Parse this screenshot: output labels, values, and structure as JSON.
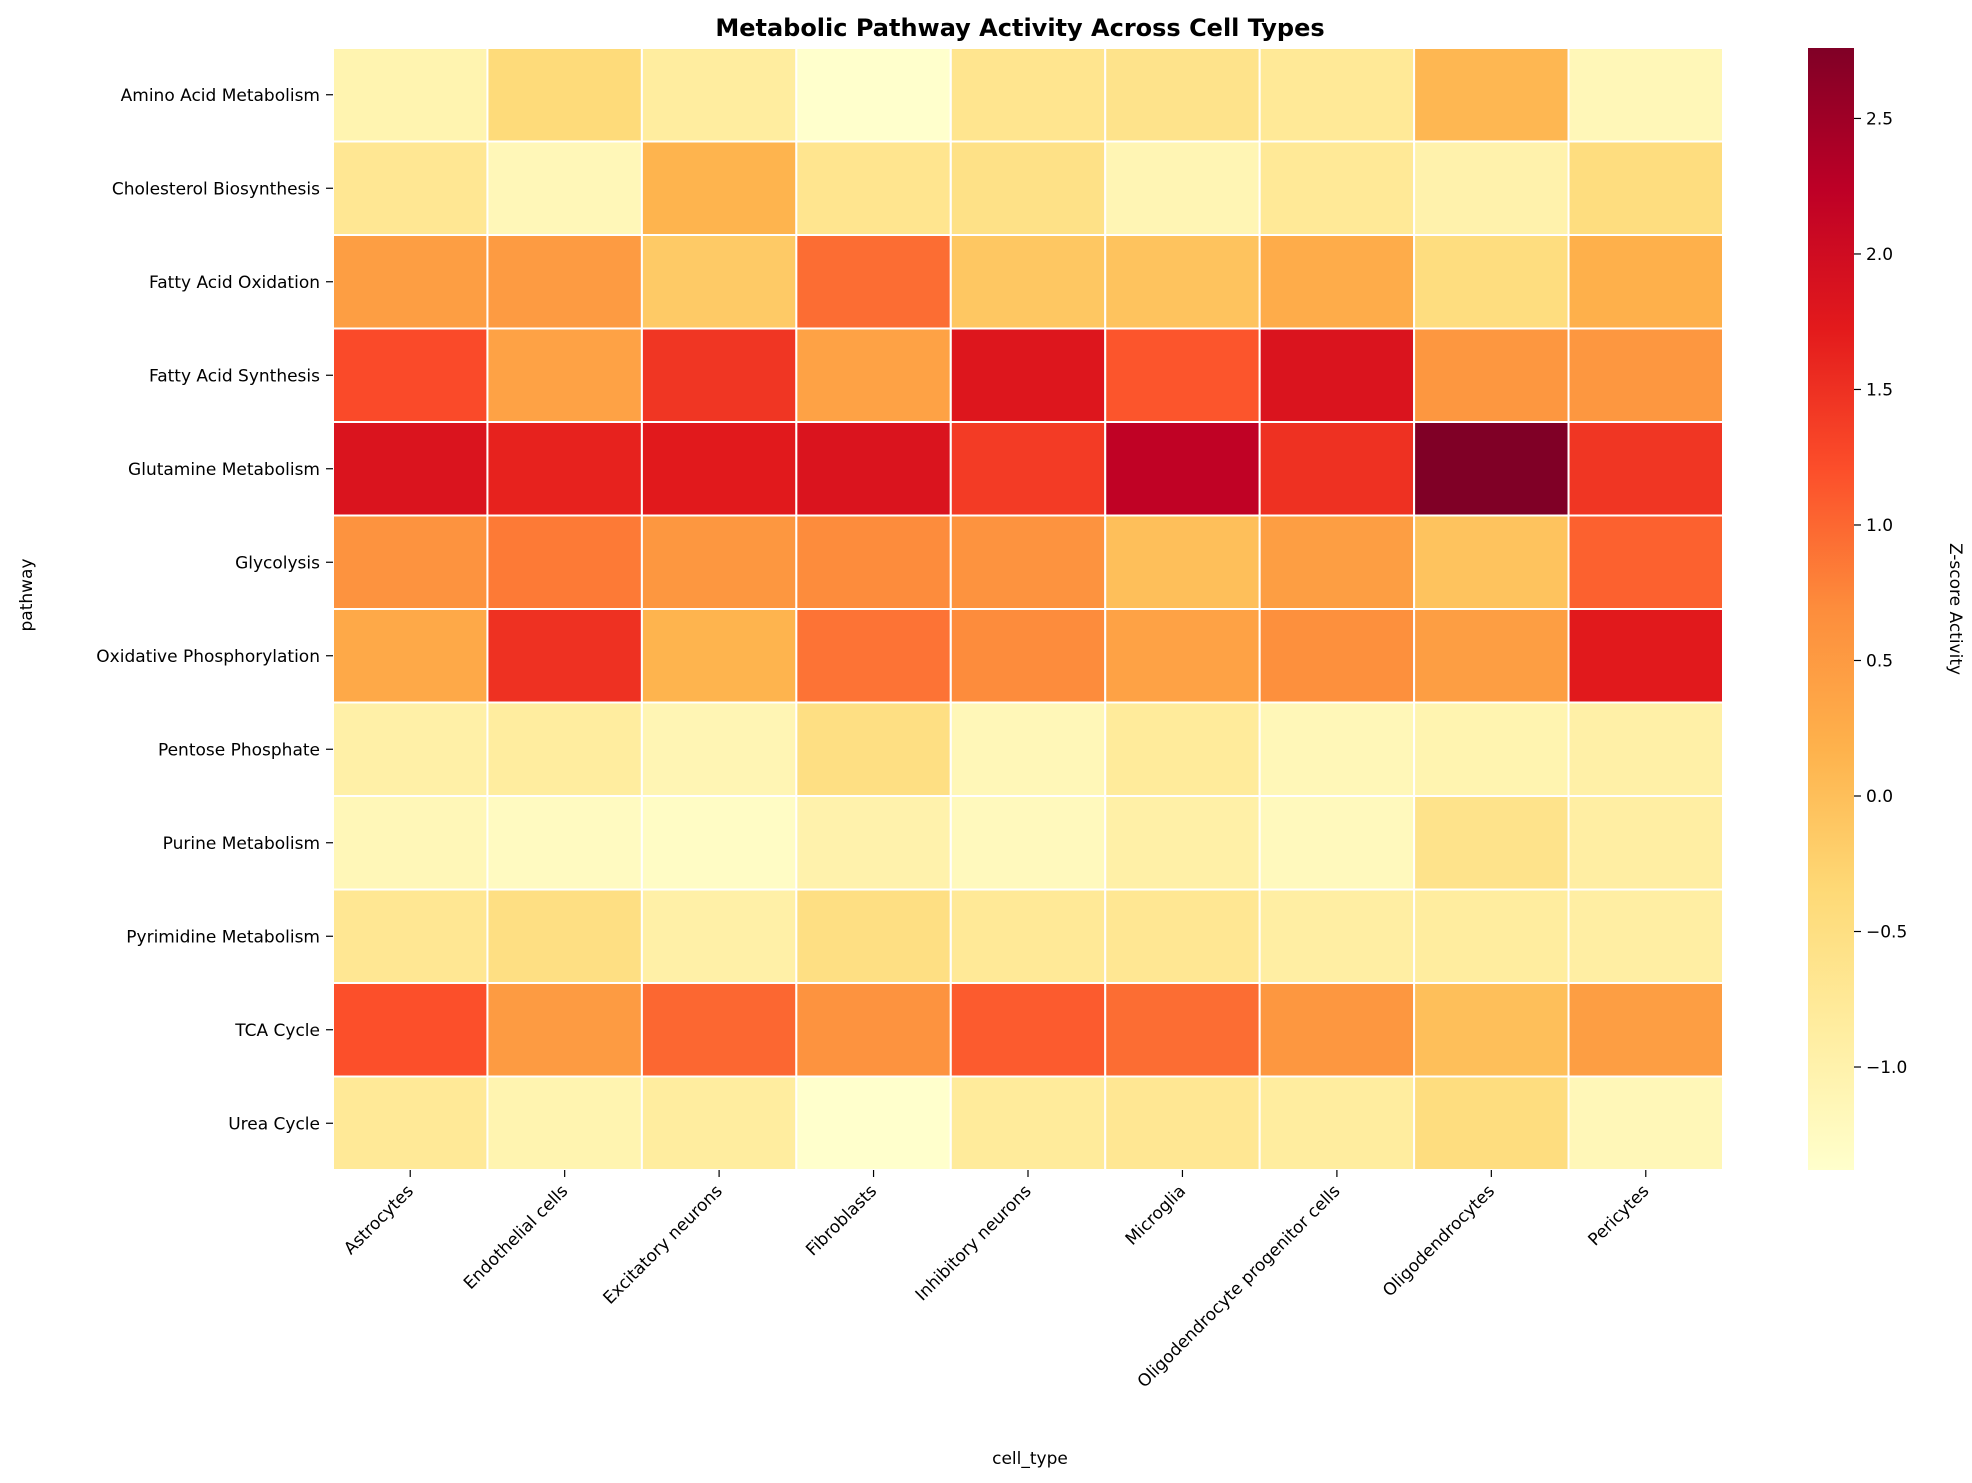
{
  "chart_data": {
    "type": "heatmap",
    "title": "Metabolic Pathway Activity Across Cell Types",
    "xlabel": "cell_type",
    "ylabel": "pathway",
    "colorbar_label": "Z-score Activity",
    "colormap": "YlOrRd",
    "vmin": -1.38,
    "vmax": 2.76,
    "colorbar_ticks": [
      2.5,
      2.0,
      1.5,
      1.0,
      0.5,
      0.0,
      -0.5,
      -1.0
    ],
    "colorbar_tick_labels": [
      "2.5",
      "2.0",
      "1.5",
      "1.0",
      "0.5",
      "0.0",
      "−0.5",
      "−1.0"
    ],
    "x_categories": [
      "Astrocytes",
      "Endothelial cells",
      "Excitatory neurons",
      "Fibroblasts",
      "Inhibitory neurons",
      "Microglia",
      "Oligodendrocyte progenitor cells",
      "Oligodendrocytes",
      "Pericytes"
    ],
    "y_categories": [
      "Amino Acid Metabolism",
      "Cholesterol Biosynthesis",
      "Fatty Acid Oxidation",
      "Fatty Acid Synthesis",
      "Glutamine Metabolism",
      "Glycolysis",
      "Oxidative Phosphorylation",
      "Pentose Phosphate",
      "Purine Metabolism",
      "Pyrimidine Metabolism",
      "TCA Cycle",
      "Urea Cycle"
    ],
    "values": [
      [
        -1.05,
        -0.4,
        -0.85,
        -1.38,
        -0.65,
        -0.6,
        -0.75,
        0.1,
        -1.15
      ],
      [
        -0.7,
        -1.15,
        0.15,
        -0.65,
        -0.55,
        -1.1,
        -0.75,
        -1.0,
        -0.45
      ],
      [
        0.45,
        0.5,
        -0.15,
        0.95,
        -0.1,
        -0.05,
        0.25,
        -0.45,
        0.2
      ],
      [
        1.25,
        0.4,
        1.45,
        0.4,
        1.8,
        1.15,
        1.85,
        0.55,
        0.55
      ],
      [
        1.85,
        1.65,
        1.75,
        1.85,
        1.4,
        2.2,
        1.5,
        2.76,
        1.45
      ],
      [
        0.6,
        0.85,
        0.55,
        0.7,
        0.6,
        0.0,
        0.45,
        -0.05,
        1.05
      ],
      [
        0.3,
        1.5,
        0.15,
        0.9,
        0.7,
        0.4,
        0.65,
        0.45,
        1.75
      ],
      [
        -0.95,
        -0.85,
        -1.1,
        -0.5,
        -1.15,
        -0.8,
        -1.15,
        -1.05,
        -0.95
      ],
      [
        -1.15,
        -1.25,
        -1.3,
        -1.0,
        -1.2,
        -0.95,
        -1.2,
        -0.6,
        -0.9
      ],
      [
        -0.7,
        -0.5,
        -0.95,
        -0.5,
        -0.75,
        -0.7,
        -0.9,
        -0.85,
        -0.9
      ],
      [
        1.2,
        0.5,
        1.0,
        0.6,
        1.1,
        0.95,
        0.55,
        0.0,
        0.45
      ],
      [
        -0.75,
        -1.05,
        -0.85,
        -1.38,
        -0.8,
        -0.7,
        -0.85,
        -0.45,
        -1.15
      ]
    ]
  }
}
